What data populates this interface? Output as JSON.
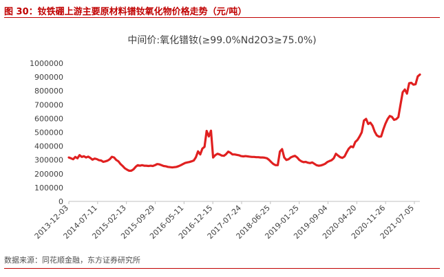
{
  "header": {
    "figure_title": "图 30：钕铁硼上游主要原材料镨钕氧化物价格走势（元/吨）"
  },
  "source_note": "数据来源：同花顺金融，东方证券研究所",
  "chart_data": {
    "type": "line",
    "title": "中间价:氧化镨钕(≥99.0%Nd2O3≥75.0%)",
    "xlabel": "",
    "ylabel": "",
    "ylim": [
      0,
      1000000
    ],
    "yticks": [
      "0",
      "100000",
      "200000",
      "300000",
      "400000",
      "500000",
      "600000",
      "700000",
      "800000",
      "900000",
      "1000000"
    ],
    "xticks": [
      "2013-12-03",
      "2014-07-11",
      "2015-02-13",
      "2015-09-29",
      "2016-05-11",
      "2016-12-15",
      "2017-07-24",
      "2018-06-25",
      "2019-01-25",
      "2019-09-04",
      "2020-04-20",
      "2020-11-26",
      "2021-07-05"
    ],
    "grid": false,
    "legend": "none",
    "colors": {
      "line": "#e02020",
      "axis": "#bfbfbf",
      "title": "#c00000"
    },
    "series": [
      {
        "name": "",
        "points": [
          [
            0,
            318000
          ],
          [
            1,
            312000
          ],
          [
            2,
            305000
          ],
          [
            3,
            322000
          ],
          [
            4,
            312000
          ],
          [
            5,
            335000
          ],
          [
            6,
            322000
          ],
          [
            7,
            327000
          ],
          [
            8,
            318000
          ],
          [
            9,
            324000
          ],
          [
            10,
            314000
          ],
          [
            11,
            302000
          ],
          [
            12,
            310000
          ],
          [
            13,
            306000
          ],
          [
            14,
            298000
          ],
          [
            15,
            296000
          ],
          [
            16,
            286000
          ],
          [
            17,
            290000
          ],
          [
            18,
            295000
          ],
          [
            19,
            305000
          ],
          [
            20,
            323000
          ],
          [
            21,
            318000
          ],
          [
            22,
            300000
          ],
          [
            23,
            290000
          ],
          [
            24,
            270000
          ],
          [
            25,
            256000
          ],
          [
            26,
            240000
          ],
          [
            27,
            230000
          ],
          [
            28,
            222000
          ],
          [
            29,
            222000
          ],
          [
            30,
            232000
          ],
          [
            31,
            250000
          ],
          [
            32,
            262000
          ],
          [
            33,
            258000
          ],
          [
            34,
            262000
          ],
          [
            35,
            258000
          ],
          [
            36,
            258000
          ],
          [
            37,
            256000
          ],
          [
            38,
            258000
          ],
          [
            39,
            256000
          ],
          [
            40,
            262000
          ],
          [
            41,
            270000
          ],
          [
            42,
            268000
          ],
          [
            43,
            262000
          ],
          [
            44,
            256000
          ],
          [
            45,
            254000
          ],
          [
            46,
            250000
          ],
          [
            47,
            248000
          ],
          [
            48,
            246000
          ],
          [
            49,
            248000
          ],
          [
            50,
            250000
          ],
          [
            51,
            255000
          ],
          [
            52,
            262000
          ],
          [
            53,
            270000
          ],
          [
            54,
            278000
          ],
          [
            55,
            282000
          ],
          [
            56,
            285000
          ],
          [
            57,
            290000
          ],
          [
            58,
            296000
          ],
          [
            59,
            320000
          ],
          [
            60,
            362000
          ],
          [
            61,
            340000
          ],
          [
            62,
            382000
          ],
          [
            63,
            395000
          ],
          [
            64,
            510000
          ],
          [
            65,
            470000
          ],
          [
            66,
            512000
          ],
          [
            67,
            318000
          ],
          [
            68,
            335000
          ],
          [
            69,
            345000
          ],
          [
            70,
            340000
          ],
          [
            71,
            332000
          ],
          [
            72,
            330000
          ],
          [
            73,
            342000
          ],
          [
            74,
            360000
          ],
          [
            75,
            352000
          ],
          [
            76,
            340000
          ],
          [
            77,
            340000
          ],
          [
            78,
            337000
          ],
          [
            79,
            334000
          ],
          [
            80,
            328000
          ],
          [
            81,
            326000
          ],
          [
            82,
            328000
          ],
          [
            83,
            326000
          ],
          [
            84,
            324000
          ],
          [
            85,
            322000
          ],
          [
            86,
            322000
          ],
          [
            87,
            320000
          ],
          [
            88,
            320000
          ],
          [
            89,
            318000
          ],
          [
            90,
            318000
          ],
          [
            91,
            316000
          ],
          [
            92,
            312000
          ],
          [
            93,
            300000
          ],
          [
            94,
            284000
          ],
          [
            95,
            270000
          ],
          [
            96,
            262000
          ],
          [
            97,
            262000
          ],
          [
            98,
            360000
          ],
          [
            99,
            378000
          ],
          [
            100,
            318000
          ],
          [
            101,
            300000
          ],
          [
            102,
            305000
          ],
          [
            103,
            318000
          ],
          [
            104,
            325000
          ],
          [
            105,
            330000
          ],
          [
            106,
            318000
          ],
          [
            107,
            300000
          ],
          [
            108,
            290000
          ],
          [
            109,
            284000
          ],
          [
            110,
            286000
          ],
          [
            111,
            280000
          ],
          [
            112,
            277000
          ],
          [
            113,
            282000
          ],
          [
            114,
            272000
          ],
          [
            115,
            262000
          ],
          [
            116,
            258000
          ],
          [
            117,
            260000
          ],
          [
            118,
            265000
          ],
          [
            119,
            272000
          ],
          [
            120,
            285000
          ],
          [
            121,
            292000
          ],
          [
            122,
            298000
          ],
          [
            123,
            312000
          ],
          [
            124,
            345000
          ],
          [
            125,
            332000
          ],
          [
            126,
            320000
          ],
          [
            127,
            315000
          ],
          [
            128,
            325000
          ],
          [
            129,
            355000
          ],
          [
            130,
            382000
          ],
          [
            131,
            398000
          ],
          [
            132,
            392000
          ],
          [
            133,
            430000
          ],
          [
            134,
            445000
          ],
          [
            135,
            470000
          ],
          [
            136,
            500000
          ],
          [
            137,
            585000
          ],
          [
            138,
            597000
          ],
          [
            139,
            560000
          ],
          [
            140,
            570000
          ],
          [
            141,
            548000
          ],
          [
            142,
            505000
          ],
          [
            143,
            478000
          ],
          [
            144,
            468000
          ],
          [
            145,
            470000
          ],
          [
            146,
            520000
          ],
          [
            147,
            562000
          ],
          [
            148,
            596000
          ],
          [
            149,
            618000
          ],
          [
            150,
            612000
          ],
          [
            151,
            590000
          ],
          [
            152,
            595000
          ],
          [
            153,
            610000
          ],
          [
            154,
            700000
          ],
          [
            155,
            790000
          ],
          [
            156,
            810000
          ],
          [
            157,
            780000
          ],
          [
            158,
            855000
          ],
          [
            159,
            858000
          ],
          [
            160,
            845000
          ],
          [
            161,
            848000
          ],
          [
            162,
            905000
          ],
          [
            163,
            918000
          ]
        ]
      }
    ],
    "x_range": [
      0,
      163
    ]
  }
}
